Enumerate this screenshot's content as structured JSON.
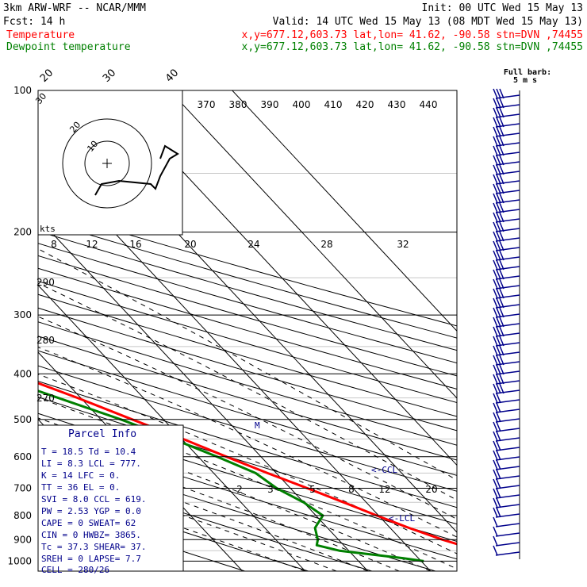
{
  "header": {
    "model": "3km ARW-WRF -- NCAR/MMM",
    "init": "Init: 00 UTC Wed 15 May 13",
    "fcst": "Fcst:    14 h",
    "valid": "Valid: 14 UTC Wed 15 May 13 (08 MDT Wed 15 May 13)"
  },
  "legend": [
    {
      "name": "Temperature",
      "info": "x,y=677.12,603.73   lat,lon= 41.62, -90.58  stn=DVN ,74455",
      "color": "#ff0000"
    },
    {
      "name": "Dewpoint temperature",
      "info": "x,y=677.12,603.73   lat,lon= 41.62, -90.58  stn=DVN ,74455",
      "color": "#008000"
    }
  ],
  "barb_label": "Full barb:",
  "barb_units": "5 m s",
  "hodo": {
    "units": "kts",
    "rings": [
      "10",
      "20",
      "30"
    ]
  },
  "parcel_info": {
    "title": "Parcel Info",
    "rows": [
      "T  =   18.5  Td =  10.4",
      "LI =    8.3  LCL =  777.",
      "K  =     14  LFC =    0.",
      "TT =     36  EL  =    0.",
      "SVI =   8.0  CCL =  619.",
      "PW =   2.53  YGP =   0.0",
      "CAPE =    0  SWEAT=   62",
      "CIN =     0  HWBZ= 3865.",
      "Tc =   37.3  SHEAR=  37.",
      "SREH =    0  LAPSE=  7.7",
      "CELL = 280/26"
    ]
  },
  "annotations": {
    "ccl": "<-CCL",
    "lcl": "<-LCL",
    "m": "M"
  },
  "chart_data": {
    "type": "line",
    "title": "",
    "pressure_levels": [
      "100",
      "200",
      "300",
      "400",
      "500",
      "600",
      "700",
      "800",
      "900",
      "1000"
    ],
    "temperature_ticks": [
      "-80",
      "-70",
      "-60",
      "-50",
      "-40",
      "-30",
      "-20",
      "-10",
      "0",
      "10",
      "20",
      "30",
      "40"
    ],
    "theta_labels": [
      "370",
      "380",
      "390",
      "400",
      "410",
      "420",
      "430",
      "440"
    ],
    "theta_left_labels": [
      "290",
      "280",
      "270"
    ],
    "mixing_ratio_top_labels": [
      "8",
      "12",
      "16",
      "20",
      "24",
      "28",
      "32"
    ],
    "mixing_ratio_lower_labels": [
      "2",
      "3",
      "5",
      "8",
      "12",
      "20"
    ],
    "series": [
      {
        "name": "Temperature",
        "color": "#ff0000",
        "pressure": [
          1000,
          985,
          950,
          925,
          900,
          850,
          800,
          750,
          700,
          650,
          600,
          550,
          500,
          450,
          400,
          350,
          300,
          250,
          200,
          170,
          150,
          130,
          110,
          100
        ],
        "values": [
          18.5,
          20.5,
          20.5,
          18.7,
          16.6,
          13.0,
          9.7,
          6.4,
          2.7,
          -1.4,
          -5.5,
          -9.8,
          -15.0,
          -20.5,
          -27.2,
          -34.6,
          -42.0,
          -50.2,
          -58.0,
          -60.5,
          -60.0,
          -58.5,
          -56.0,
          -54.5
        ]
      },
      {
        "name": "Dewpoint temperature",
        "color": "#008000",
        "pressure": [
          1000,
          985,
          950,
          925,
          900,
          850,
          800,
          750,
          700,
          650,
          600,
          550,
          500,
          450,
          400,
          350,
          300,
          280,
          250,
          225,
          200,
          175,
          150,
          125,
          110,
          100
        ],
        "values": [
          10.4,
          7.4,
          -1.5,
          -4.3,
          -3.3,
          -2.0,
          1.1,
          0.0,
          -2.2,
          -3.3,
          -7.0,
          -11.4,
          -16.8,
          -23.6,
          -31.1,
          -40.0,
          -55.0,
          -63.5,
          -64.0,
          -68.0,
          -73.0,
          -77.0,
          -78.5,
          -78.0,
          -76.5,
          -75.5
        ]
      }
    ],
    "ylim": [
      100,
      1000
    ],
    "xlim": [
      -80,
      40
    ]
  }
}
